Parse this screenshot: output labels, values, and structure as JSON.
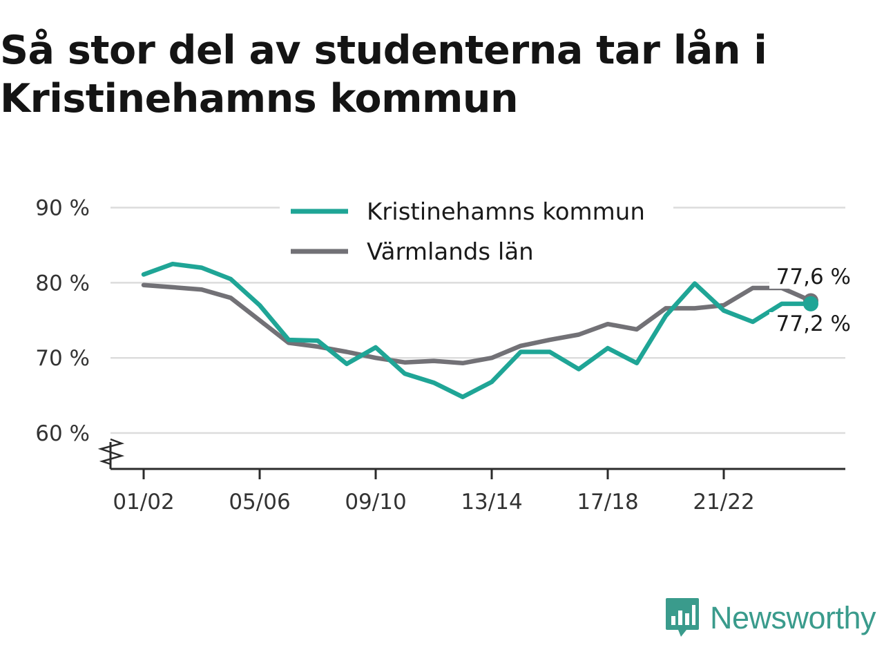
{
  "title": "Så stor del av studenterna tar lån i Kristinehamns kommun",
  "brand": {
    "name": "Newsworthy",
    "icon": "newsworthy-logo-icon",
    "color": "#3a9b8c"
  },
  "chart_data": {
    "type": "line",
    "title": "Så stor del av studenterna tar lån i Kristinehamns kommun",
    "x": [
      "01/02",
      "02/03",
      "03/04",
      "04/05",
      "05/06",
      "06/07",
      "07/08",
      "08/09",
      "09/10",
      "10/11",
      "11/12",
      "12/13",
      "13/14",
      "14/15",
      "15/16",
      "16/17",
      "17/18",
      "18/19",
      "19/20",
      "20/21",
      "21/22",
      "22/23",
      "23/24",
      "24/25"
    ],
    "x_tick_labels": [
      "01/02",
      "05/06",
      "09/10",
      "13/14",
      "17/18",
      "21/22"
    ],
    "y_tick_labels": [
      "60 %",
      "70 %",
      "80 %",
      "90 %"
    ],
    "y_ticks": [
      60,
      70,
      80,
      90
    ],
    "ylim": [
      55,
      90
    ],
    "y_axis_break": true,
    "grid": true,
    "legend_position": "top-center",
    "series": [
      {
        "name": "Kristinehamns kommun",
        "color": "#1fa596",
        "values": [
          81.1,
          82.5,
          82.0,
          80.5,
          77.0,
          72.4,
          72.3,
          69.2,
          71.4,
          67.9,
          66.7,
          64.8,
          66.8,
          70.8,
          70.8,
          68.5,
          71.3,
          69.3,
          75.6,
          79.9,
          76.3,
          74.8,
          77.2,
          77.2
        ],
        "end_label": "77,2 %"
      },
      {
        "name": "Värmlands län",
        "color": "#727176",
        "values": [
          79.7,
          79.4,
          79.1,
          78.0,
          75.0,
          72.0,
          71.5,
          70.8,
          70.0,
          69.4,
          69.6,
          69.3,
          70.0,
          71.6,
          72.4,
          73.1,
          74.5,
          73.8,
          76.6,
          76.6,
          77.0,
          79.3,
          79.3,
          77.6
        ],
        "end_label": "77,6 %"
      }
    ]
  }
}
